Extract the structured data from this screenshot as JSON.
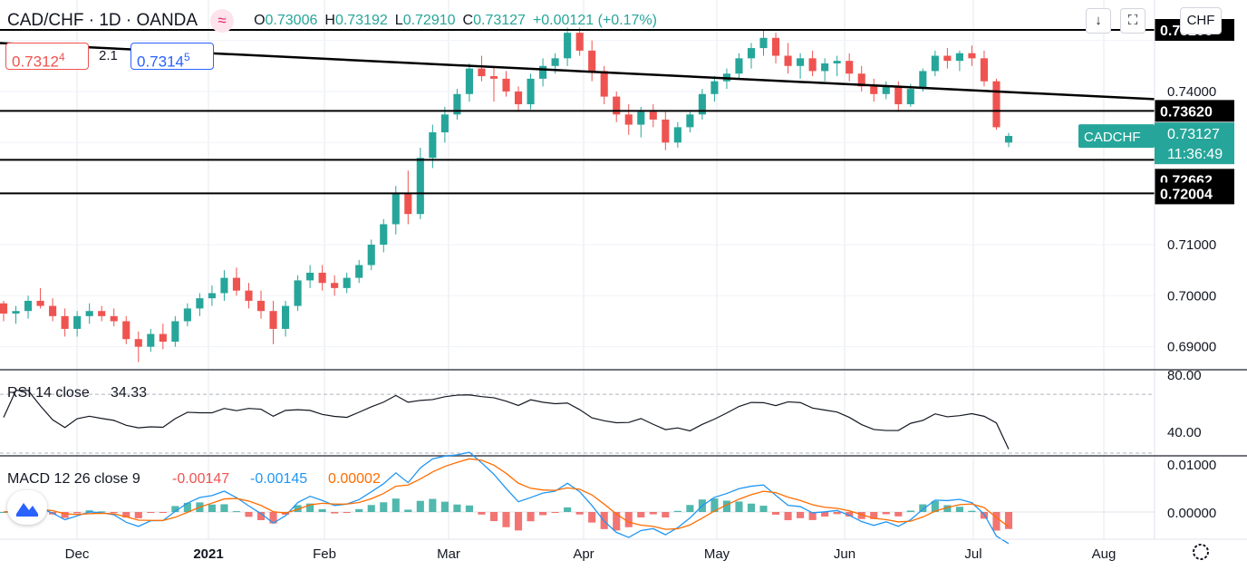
{
  "header": {
    "symbol": "CAD/CHF · 1D · OANDA",
    "o_label": "O",
    "o_value": "0.73006",
    "h_label": "H",
    "h_value": "0.73192",
    "l_label": "L",
    "l_value": "0.72910",
    "c_label": "C",
    "c_value": "0.73127",
    "change": "+0.00121 (+0.17%)"
  },
  "order_panel": {
    "sell_price": "0.7312",
    "sell_sup": "4",
    "spread": "2.1",
    "buy_price": "0.7314",
    "buy_sup": "5"
  },
  "toolbar": {
    "currency_label": "CHF"
  },
  "colors": {
    "up": "#26a69a",
    "down": "#ef5350",
    "rsi": "#131722",
    "macd": "#2196f3",
    "signal": "#ff6d00",
    "label_bg": "#000000"
  },
  "price_scale_ticks": [
    "0.74000",
    "0.71000",
    "0.70000",
    "0.69000"
  ],
  "horizontal_levels": [
    "0.75206",
    "0.73620",
    "0.72662",
    "0.72004"
  ],
  "last_price_label": {
    "symbol": "CADCHF",
    "price": "0.73127",
    "countdown": "11:36:49"
  },
  "time_axis": [
    "Dec",
    "2021",
    "Feb",
    "Mar",
    "Apr",
    "May",
    "Jun",
    "Jul",
    "Aug"
  ],
  "rsi": {
    "label": "RSI 14 close",
    "value": "34.33",
    "ticks": [
      "80.00",
      "40.00"
    ]
  },
  "macd": {
    "label": "MACD 12 26 close 9",
    "macd_value": "-0.00147",
    "signal_value": "-0.00145",
    "hist_value": "0.00002",
    "ticks": [
      "0.01000",
      "0.00000"
    ]
  },
  "chart_data": {
    "type": "candlestick",
    "ylim": [
      0.6855,
      0.7565
    ],
    "x_range_months": "Nov 2020 – Aug 2021",
    "series": [
      {
        "ohlc_samples": [
          [
            0.6985,
            0.699,
            0.695,
            0.6965
          ],
          [
            0.6965,
            0.698,
            0.6945,
            0.697
          ],
          [
            0.697,
            0.7,
            0.6955,
            0.699
          ],
          [
            0.699,
            0.7015,
            0.6975,
            0.698
          ],
          [
            0.698,
            0.6995,
            0.695,
            0.696
          ],
          [
            0.696,
            0.6975,
            0.692,
            0.6935
          ],
          [
            0.6935,
            0.697,
            0.692,
            0.696
          ],
          [
            0.696,
            0.6985,
            0.6945,
            0.697
          ],
          [
            0.697,
            0.698,
            0.695,
            0.696
          ],
          [
            0.696,
            0.6975,
            0.694,
            0.695
          ],
          [
            0.695,
            0.696,
            0.6905,
            0.6915
          ],
          [
            0.6915,
            0.693,
            0.687,
            0.69
          ],
          [
            0.69,
            0.6935,
            0.689,
            0.6925
          ],
          [
            0.6925,
            0.6945,
            0.6895,
            0.691
          ],
          [
            0.691,
            0.696,
            0.69,
            0.695
          ],
          [
            0.695,
            0.6985,
            0.694,
            0.6975
          ],
          [
            0.6975,
            0.7005,
            0.696,
            0.6995
          ],
          [
            0.6995,
            0.702,
            0.698,
            0.7005
          ],
          [
            0.7005,
            0.705,
            0.699,
            0.7035
          ],
          [
            0.7035,
            0.7055,
            0.7,
            0.701
          ],
          [
            0.701,
            0.7025,
            0.6975,
            0.699
          ],
          [
            0.699,
            0.701,
            0.6955,
            0.697
          ],
          [
            0.697,
            0.699,
            0.6905,
            0.6935
          ],
          [
            0.6935,
            0.699,
            0.692,
            0.698
          ],
          [
            0.698,
            0.704,
            0.697,
            0.703
          ],
          [
            0.703,
            0.706,
            0.7015,
            0.7045
          ],
          [
            0.7045,
            0.706,
            0.701,
            0.7025
          ],
          [
            0.7025,
            0.704,
            0.7,
            0.7015
          ],
          [
            0.7015,
            0.7045,
            0.7005,
            0.7035
          ],
          [
            0.7035,
            0.707,
            0.7025,
            0.706
          ],
          [
            0.706,
            0.711,
            0.705,
            0.71
          ],
          [
            0.71,
            0.715,
            0.7085,
            0.714
          ],
          [
            0.714,
            0.7215,
            0.712,
            0.72
          ],
          [
            0.72,
            0.7245,
            0.714,
            0.716
          ],
          [
            0.716,
            0.729,
            0.715,
            0.727
          ],
          [
            0.727,
            0.7335,
            0.725,
            0.732
          ],
          [
            0.732,
            0.737,
            0.73,
            0.7355
          ],
          [
            0.7355,
            0.7405,
            0.7345,
            0.7395
          ],
          [
            0.7395,
            0.7455,
            0.738,
            0.7445
          ],
          [
            0.7445,
            0.747,
            0.742,
            0.743
          ],
          [
            0.743,
            0.745,
            0.738,
            0.7425
          ],
          [
            0.7425,
            0.744,
            0.739,
            0.74
          ],
          [
            0.74,
            0.741,
            0.736,
            0.7375
          ],
          [
            0.7375,
            0.7435,
            0.7365,
            0.7425
          ],
          [
            0.7425,
            0.7465,
            0.741,
            0.745
          ],
          [
            0.745,
            0.7475,
            0.7435,
            0.7465
          ],
          [
            0.7465,
            0.7525,
            0.745,
            0.7515
          ],
          [
            0.7515,
            0.7525,
            0.747,
            0.748
          ],
          [
            0.748,
            0.75,
            0.742,
            0.744
          ],
          [
            0.744,
            0.745,
            0.7375,
            0.739
          ],
          [
            0.739,
            0.74,
            0.734,
            0.7355
          ],
          [
            0.7355,
            0.7375,
            0.7315,
            0.7335
          ],
          [
            0.7335,
            0.737,
            0.731,
            0.736
          ],
          [
            0.736,
            0.7375,
            0.733,
            0.7345
          ],
          [
            0.7345,
            0.736,
            0.7285,
            0.73
          ],
          [
            0.73,
            0.734,
            0.729,
            0.733
          ],
          [
            0.733,
            0.736,
            0.732,
            0.7355
          ],
          [
            0.7355,
            0.7405,
            0.7345,
            0.7395
          ],
          [
            0.7395,
            0.743,
            0.738,
            0.742
          ],
          [
            0.742,
            0.7445,
            0.7405,
            0.7435
          ],
          [
            0.7435,
            0.7475,
            0.7425,
            0.7465
          ],
          [
            0.7465,
            0.7495,
            0.7445,
            0.7485
          ],
          [
            0.7485,
            0.752,
            0.747,
            0.7505
          ],
          [
            0.7505,
            0.7515,
            0.7455,
            0.747
          ],
          [
            0.747,
            0.7495,
            0.7435,
            0.745
          ],
          [
            0.745,
            0.7475,
            0.7425,
            0.7465
          ],
          [
            0.7465,
            0.748,
            0.743,
            0.744
          ],
          [
            0.744,
            0.7465,
            0.742,
            0.7455
          ],
          [
            0.7455,
            0.747,
            0.743,
            0.746
          ],
          [
            0.746,
            0.7475,
            0.742,
            0.7435
          ],
          [
            0.7435,
            0.745,
            0.74,
            0.741
          ],
          [
            0.741,
            0.7425,
            0.738,
            0.7395
          ],
          [
            0.7395,
            0.742,
            0.7385,
            0.741
          ],
          [
            0.741,
            0.742,
            0.736,
            0.7375
          ],
          [
            0.7375,
            0.7415,
            0.737,
            0.7405
          ],
          [
            0.7405,
            0.7445,
            0.74,
            0.744
          ],
          [
            0.744,
            0.748,
            0.743,
            0.747
          ],
          [
            0.747,
            0.7485,
            0.7445,
            0.746
          ],
          [
            0.746,
            0.748,
            0.744,
            0.7475
          ],
          [
            0.7475,
            0.749,
            0.745,
            0.7465
          ],
          [
            0.7465,
            0.748,
            0.741,
            0.742
          ],
          [
            0.742,
            0.7425,
            0.7325,
            0.733
          ],
          [
            0.73,
            0.7319,
            0.7291,
            0.7313
          ]
        ]
      }
    ],
    "levels": [
      0.75206,
      0.7362,
      0.72662,
      0.72004
    ],
    "trendline": {
      "start": 0.7495,
      "end": 0.7385
    }
  }
}
